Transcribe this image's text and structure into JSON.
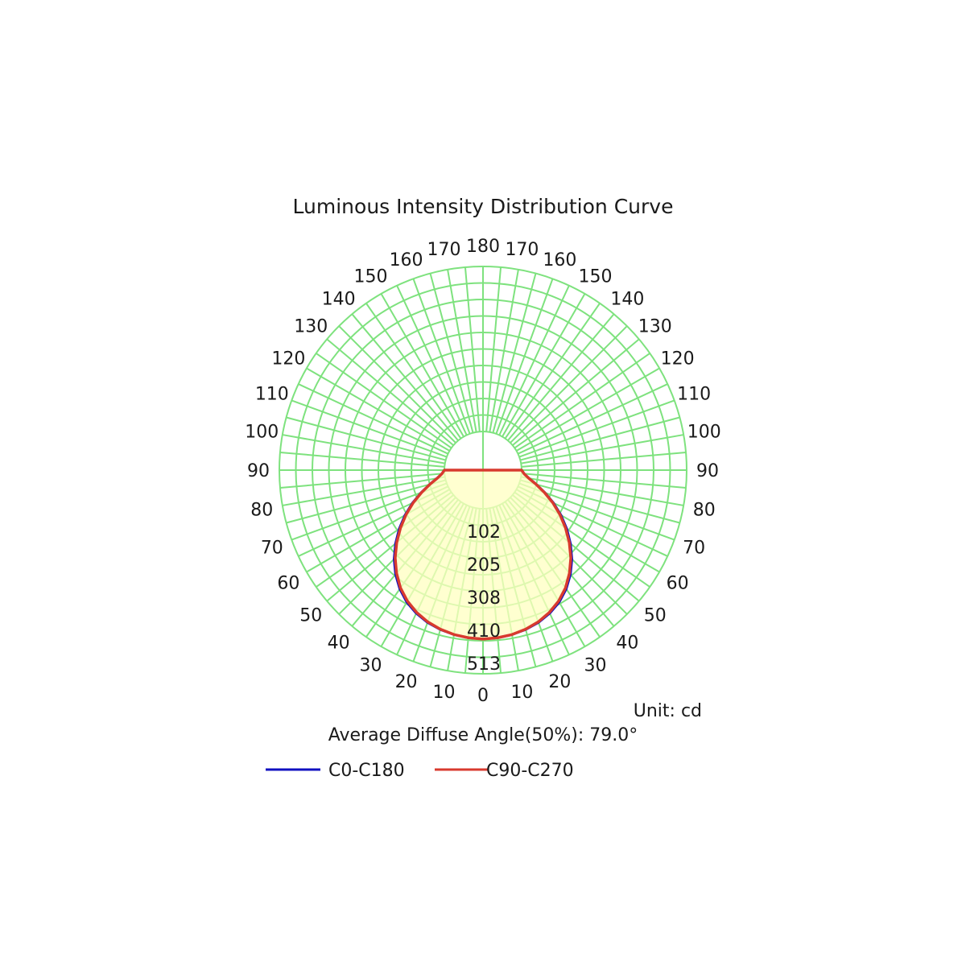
{
  "chart_data": {
    "type": "polar",
    "title": "Luminous Intensity Distribution Curve",
    "unit_label": "Unit: cd",
    "diffuse_angle_label": "Average Diffuse Angle(50%): 79.0°",
    "r_max": 513,
    "ring_ticks": [
      "102",
      "205",
      "308",
      "410",
      "513"
    ],
    "ring_values": [
      102.6,
      205.2,
      307.8,
      410.4,
      513
    ],
    "angle_labels_left": [
      "0",
      "10",
      "20",
      "30",
      "40",
      "50",
      "60",
      "70",
      "80",
      "90",
      "100",
      "110",
      "120",
      "130",
      "140",
      "150",
      "160",
      "170",
      "180"
    ],
    "angle_labels_right": [
      "10",
      "20",
      "30",
      "40",
      "50",
      "60",
      "70",
      "80",
      "90",
      "100",
      "110",
      "120",
      "130",
      "140",
      "150",
      "160",
      "170"
    ],
    "angle_values_deg": [
      0,
      10,
      20,
      30,
      40,
      50,
      60,
      70,
      80,
      90,
      100,
      110,
      120,
      130,
      140,
      150,
      160,
      170,
      180
    ],
    "grid": true,
    "colors": {
      "grid": "#7ee27e",
      "fill": "#ffffc0",
      "c0_c180": "#1010c0",
      "c90_c270": "#d83a2e"
    },
    "series": [
      {
        "name": "C0-C180",
        "angles_deg": [
          0,
          5,
          10,
          15,
          20,
          25,
          30,
          35,
          40,
          45,
          50,
          55,
          60,
          65,
          70,
          75,
          80,
          85,
          90
        ],
        "values": [
          405,
          403,
          399,
          393,
          384,
          371,
          354,
          331,
          303,
          271,
          235,
          198,
          160,
          122,
          85,
          52,
          25,
          8,
          0
        ]
      },
      {
        "name": "C90-C270",
        "angles_deg": [
          0,
          5,
          10,
          15,
          20,
          25,
          30,
          35,
          40,
          45,
          50,
          55,
          60,
          65,
          70,
          75,
          80,
          85,
          90
        ],
        "values": [
          405,
          403,
          399,
          392,
          382,
          368,
          350,
          327,
          298,
          266,
          230,
          193,
          156,
          119,
          83,
          51,
          24,
          8,
          0
        ]
      }
    ]
  }
}
